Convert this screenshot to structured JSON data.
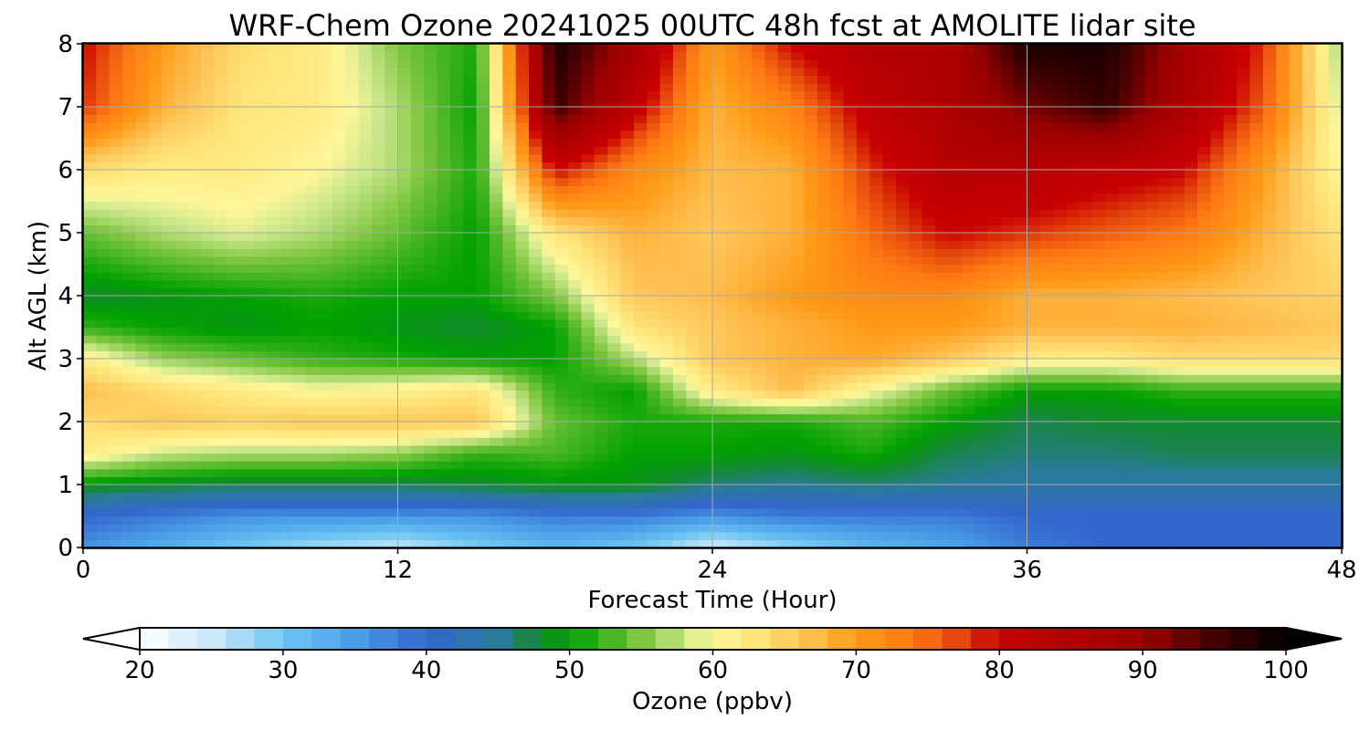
{
  "chart_data": {
    "type": "heatmap",
    "title": "WRF-Chem Ozone  20241025 00UTC 48h fcst at AMOLITE lidar site",
    "xlabel": "Forecast Time (Hour)",
    "ylabel": "Alt AGL (km)",
    "xlim": [
      0,
      48
    ],
    "ylim": [
      0,
      8
    ],
    "xticks": [
      "0",
      "12",
      "24",
      "36",
      "48"
    ],
    "yticks": [
      "0",
      "1",
      "2",
      "3",
      "4",
      "5",
      "6",
      "7",
      "8"
    ],
    "grid": true,
    "colorbar": {
      "label": "Ozone  (ppbv)",
      "range": [
        20,
        100
      ],
      "ticks": [
        "20",
        "30",
        "40",
        "50",
        "60",
        "70",
        "80",
        "90",
        "100"
      ],
      "extend": "both"
    },
    "x_hours": [
      0,
      3,
      6,
      9,
      12,
      15,
      18,
      21,
      24,
      27,
      30,
      33,
      36,
      39,
      42,
      45,
      48
    ],
    "y_km": [
      0,
      0.5,
      1,
      1.5,
      2,
      2.5,
      3,
      3.5,
      4,
      5,
      6,
      7,
      8
    ],
    "values_ppbv": [
      [
        36,
        33,
        30,
        27,
        25,
        29,
        32,
        30,
        24,
        28,
        32,
        34,
        38,
        40,
        40,
        40,
        40
      ],
      [
        40,
        38,
        36,
        36,
        36,
        36,
        38,
        38,
        36,
        38,
        38,
        38,
        40,
        40,
        40,
        40,
        40
      ],
      [
        49,
        48,
        47,
        47,
        47,
        48,
        49,
        49,
        46,
        45,
        46,
        45,
        44,
        44,
        44,
        44,
        44
      ],
      [
        62,
        58,
        57,
        57,
        56,
        52,
        53,
        50,
        50,
        49,
        51,
        47,
        46,
        46,
        47,
        47,
        47
      ],
      [
        64,
        66,
        65,
        66,
        66,
        66,
        54,
        51,
        51,
        51,
        53,
        50,
        47,
        48,
        48,
        48,
        48
      ],
      [
        67,
        64,
        62,
        60,
        61,
        63,
        52,
        50,
        62,
        67,
        60,
        54,
        50,
        50,
        52,
        52,
        52
      ],
      [
        62,
        56,
        54,
        52,
        51,
        50,
        50,
        57,
        66,
        68,
        69,
        66,
        62,
        62,
        64,
        64,
        64
      ],
      [
        52,
        50,
        49,
        50,
        49,
        48,
        50,
        63,
        66,
        68,
        70,
        70,
        68,
        68,
        68,
        67,
        66
      ],
      [
        48,
        49,
        50,
        51,
        50,
        50,
        55,
        66,
        67,
        70,
        72,
        72,
        68,
        68,
        67,
        66,
        65
      ],
      [
        54,
        57,
        59,
        57,
        54,
        50,
        63,
        68,
        66,
        68,
        75,
        80,
        78,
        76,
        74,
        68,
        63
      ],
      [
        64,
        62,
        62,
        60,
        57,
        51,
        80,
        72,
        67,
        68,
        78,
        84,
        84,
        82,
        80,
        70,
        60
      ],
      [
        78,
        68,
        63,
        62,
        57,
        50,
        96,
        82,
        68,
        73,
        82,
        86,
        92,
        96,
        86,
        76,
        58
      ],
      [
        80,
        70,
        64,
        62,
        55,
        51,
        98,
        88,
        70,
        80,
        85,
        86,
        98,
        98,
        88,
        78,
        56
      ]
    ]
  },
  "colors": {
    "ozone_scale": [
      [
        20,
        "#ffffff"
      ],
      [
        25,
        "#cce8fa"
      ],
      [
        30,
        "#6ec6f2"
      ],
      [
        35,
        "#4a9fe8"
      ],
      [
        40,
        "#3366cc"
      ],
      [
        45,
        "#2a7a9a"
      ],
      [
        48,
        "#138a2e"
      ],
      [
        50,
        "#00a000"
      ],
      [
        55,
        "#7ec640"
      ],
      [
        58,
        "#c8e68a"
      ],
      [
        60,
        "#fff79a"
      ],
      [
        63,
        "#ffe57a"
      ],
      [
        66,
        "#ffc85c"
      ],
      [
        70,
        "#ff9a18"
      ],
      [
        74,
        "#ff7a14"
      ],
      [
        77,
        "#e54a0c"
      ],
      [
        80,
        "#c80000"
      ],
      [
        90,
        "#9a0000"
      ],
      [
        95,
        "#420000"
      ],
      [
        100,
        "#000000"
      ]
    ],
    "grid": "#a8a8a8"
  }
}
